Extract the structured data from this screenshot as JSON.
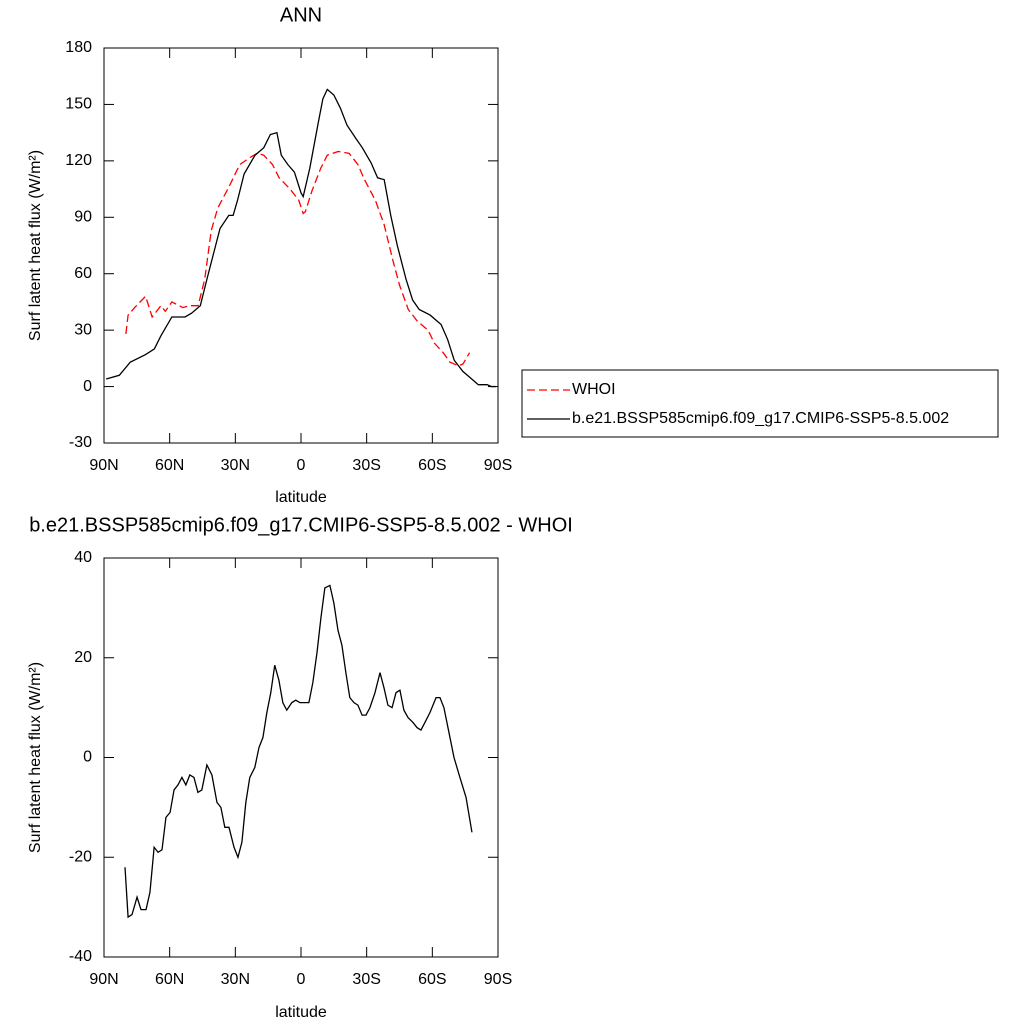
{
  "chart_data": [
    {
      "type": "line",
      "title": "ANN",
      "xlabel": "latitude",
      "ylabel": "Surf latent heat flux (W/m²)",
      "xlim": [
        90,
        -90
      ],
      "xticks": [
        {
          "value": 90,
          "label": "90N"
        },
        {
          "value": 60,
          "label": "60N"
        },
        {
          "value": 30,
          "label": "30N"
        },
        0,
        {
          "value": -30,
          "label": "30S"
        },
        {
          "value": -60,
          "label": "60S"
        },
        {
          "value": -90,
          "label": "90S"
        }
      ],
      "ylim": [
        -30,
        180
      ],
      "yticks": [
        -30,
        0,
        30,
        60,
        90,
        120,
        150,
        180
      ],
      "legend": "right",
      "series": [
        {
          "name": "WHOI",
          "color": "#ff0000",
          "dash": true,
          "x": [
            80,
            79,
            76,
            71,
            68,
            64,
            62,
            59,
            54,
            51,
            47,
            44,
            41,
            38,
            33,
            28,
            23,
            20,
            17,
            13,
            10,
            5,
            1,
            -1,
            -2,
            -5,
            -9,
            -12,
            -17,
            -22,
            -26,
            -29,
            -34,
            -38,
            -42,
            -45,
            -49,
            -53,
            -58,
            -61,
            -65,
            -68,
            -72,
            -74,
            -77
          ],
          "values": [
            28,
            38,
            42,
            48,
            37,
            43,
            40,
            45,
            42,
            43,
            43,
            57,
            83,
            95,
            106,
            118,
            122,
            124,
            123,
            118,
            111,
            105,
            99,
            92,
            93,
            104,
            116,
            123,
            125,
            124,
            118,
            110,
            99,
            86,
            67,
            54,
            41,
            35,
            30,
            23,
            18,
            13,
            11,
            12,
            18
          ]
        },
        {
          "name": "b.e21.BSSP585cmip6.f09_g17.CMIP6-SSP5-8.5.002",
          "color": "#000000",
          "dash": false,
          "x": [
            89,
            83,
            78,
            71,
            67,
            64,
            59,
            53,
            50,
            46,
            43,
            39,
            37,
            33,
            31,
            29,
            26,
            21,
            17,
            14,
            11,
            9,
            6,
            3,
            0,
            -1,
            -4,
            -8,
            -10,
            -12,
            -15,
            -18,
            -21,
            -25,
            -28,
            -32,
            -35,
            -38,
            -41,
            -44,
            -48,
            -51,
            -54,
            -59,
            -64,
            -67,
            -70,
            -74,
            -77,
            -81,
            -85,
            -87,
            -89
          ],
          "values": [
            4,
            6,
            13,
            17,
            20,
            27,
            37,
            37,
            39,
            43,
            57,
            75,
            84,
            91,
            91,
            99,
            113,
            123,
            127,
            134,
            135,
            123,
            118,
            114,
            103,
            101,
            116,
            141,
            153,
            158,
            155,
            148,
            139,
            132,
            127,
            119,
            111,
            110,
            91,
            75,
            57,
            46,
            41,
            38,
            33,
            25,
            14,
            8,
            5,
            1,
            1,
            0,
            0
          ]
        }
      ]
    },
    {
      "type": "line",
      "title": "b.e21.BSSP585cmip6.f09_g17.CMIP6-SSP5-8.5.002 - WHOI",
      "xlabel": "latitude",
      "ylabel": "Surf latent heat flux (W/m²)",
      "xlim": [
        90,
        -90
      ],
      "xticks": [
        {
          "value": 90,
          "label": "90N"
        },
        {
          "value": 60,
          "label": "60N"
        },
        {
          "value": 30,
          "label": "30N"
        },
        0,
        {
          "value": -30,
          "label": "30S"
        },
        {
          "value": -60,
          "label": "60S"
        },
        {
          "value": -90,
          "label": "90S"
        }
      ],
      "ylim": [
        -40,
        40
      ],
      "yticks": [
        -40,
        -20,
        0,
        20,
        40
      ],
      "series": [
        {
          "color": "#000000",
          "dash": false,
          "x": [
            80.4,
            79.0,
            77.2,
            74.9,
            73.1,
            70.8,
            69.0,
            67.1,
            65.3,
            63.5,
            61.7,
            59.8,
            58.0,
            56.2,
            54.4,
            52.6,
            50.8,
            48.9,
            47.1,
            45.3,
            43.0,
            40.7,
            38.4,
            36.6,
            34.8,
            32.9,
            30.6,
            28.8,
            27.0,
            25.2,
            23.4,
            21.1,
            19.2,
            17.4,
            15.6,
            13.8,
            12.0,
            10.1,
            8.3,
            6.5,
            4.2,
            2.4,
            0.5,
            -1.3,
            -3.6,
            -5.4,
            -7.3,
            -9.1,
            -10.9,
            -13.2,
            -15.0,
            -16.9,
            -18.7,
            -20.5,
            -22.3,
            -24.2,
            -26.0,
            -27.9,
            -29.7,
            -31.5,
            -33.8,
            -36.1,
            -37.9,
            -39.7,
            -41.6,
            -43.4,
            -45.2,
            -47.0,
            -48.9,
            -51.2,
            -53.0,
            -54.8,
            -56.6,
            -58.9,
            -61.7,
            -63.5,
            -65.3,
            -67.6,
            -69.9,
            -72.6,
            -75.4,
            -78.1
          ],
          "values": [
            -22,
            -32,
            -31.5,
            -28,
            -30.5,
            -30.5,
            -27,
            -18,
            -19,
            -18.5,
            -12,
            -11,
            -6.5,
            -5.5,
            -4,
            -5.5,
            -3.5,
            -4,
            -7,
            -6.5,
            -1.5,
            -3.5,
            -9,
            -10,
            -14,
            -14,
            -18,
            -20,
            -17,
            -9,
            -4,
            -2,
            2,
            4,
            9,
            13,
            18.5,
            15.5,
            11,
            9.5,
            11,
            11.5,
            11,
            11,
            11,
            15,
            21,
            28,
            34,
            34.5,
            31,
            25.5,
            22.5,
            17,
            12,
            11,
            10.5,
            8.5,
            8.5,
            10,
            13,
            17,
            14,
            10.5,
            10,
            13,
            13.5,
            9.5,
            8,
            7,
            6,
            5.5,
            7,
            9,
            12,
            12,
            10,
            5,
            0,
            -4,
            -8,
            -15
          ]
        }
      ]
    }
  ]
}
